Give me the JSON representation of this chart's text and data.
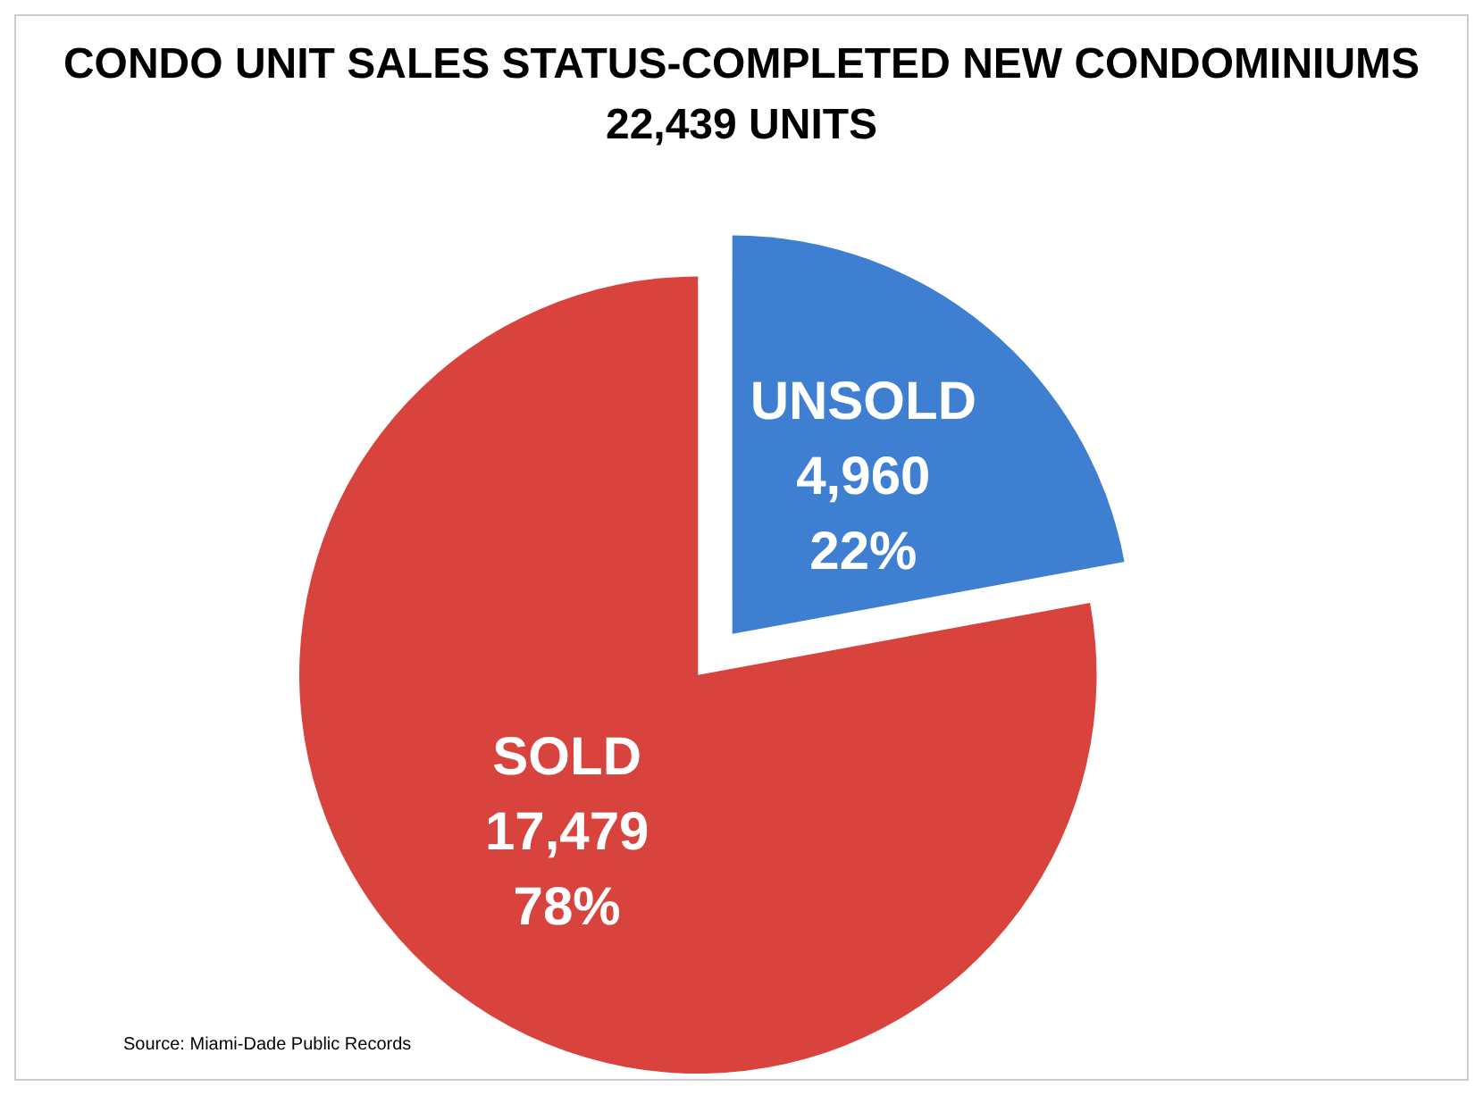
{
  "chart_data": {
    "type": "pie",
    "title": "CONDO UNIT SALES STATUS-COMPLETED NEW CONDOMINIUMS",
    "subtitle": "22,439 UNITS",
    "categories": [
      "SOLD",
      "UNSOLD"
    ],
    "values": [
      17479,
      4960
    ],
    "colors": [
      "#d8433d",
      "#3f7fd1"
    ],
    "value_labels": [
      "17,479\n78%",
      "4,960\n22%"
    ],
    "legend": false,
    "annotations": [
      "Source: Miami-Dade Public Records"
    ]
  }
}
